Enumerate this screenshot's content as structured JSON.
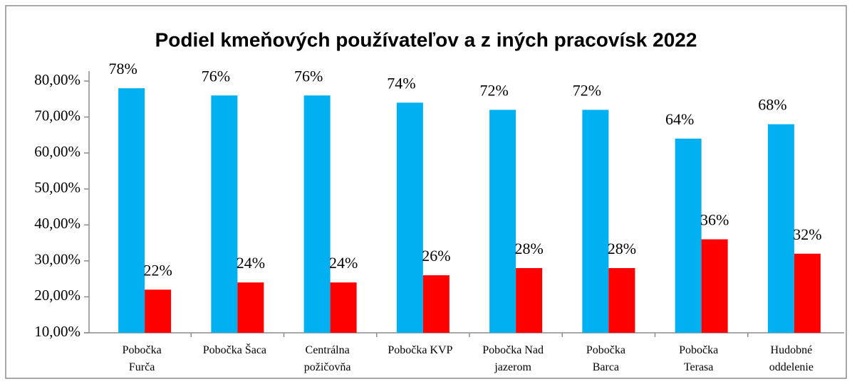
{
  "chart_data": {
    "type": "bar",
    "title": "Podiel kmeňových používateľov a z iných pracovísk 2022",
    "categories": [
      "Pobočka\nFurča",
      "Pobočka Šaca",
      "Centrálna\npožičovňa",
      "Pobočka KVP",
      "Pobočka Nad\njazerom",
      "Pobočka\nBarca",
      "Pobočka\nTerasa",
      "Hudobné\noddelenie"
    ],
    "series": [
      {
        "color": "#00b0f0",
        "values": [
          78,
          76,
          76,
          74,
          72,
          72,
          64,
          68
        ],
        "value_labels": [
          "78%",
          "76%",
          "76%",
          "74%",
          "72%",
          "72%",
          "64%",
          "68%"
        ]
      },
      {
        "color": "#ff0000",
        "values": [
          22,
          24,
          24,
          26,
          28,
          28,
          36,
          32
        ],
        "value_labels": [
          "22%",
          "24%",
          "24%",
          "26%",
          "28%",
          "28%",
          "36%",
          "32%"
        ]
      }
    ],
    "ylim": [
      10,
      80
    ],
    "yticks": [
      {
        "value": 10,
        "label": "10,00%"
      },
      {
        "value": 20,
        "label": "20,00%"
      },
      {
        "value": 30,
        "label": "30,00%"
      },
      {
        "value": 40,
        "label": "40,00%"
      },
      {
        "value": 50,
        "label": "50,00%"
      },
      {
        "value": 60,
        "label": "60,00%"
      },
      {
        "value": 70,
        "label": "70,00%"
      },
      {
        "value": 80,
        "label": "80,00%"
      }
    ],
    "grid": false
  }
}
